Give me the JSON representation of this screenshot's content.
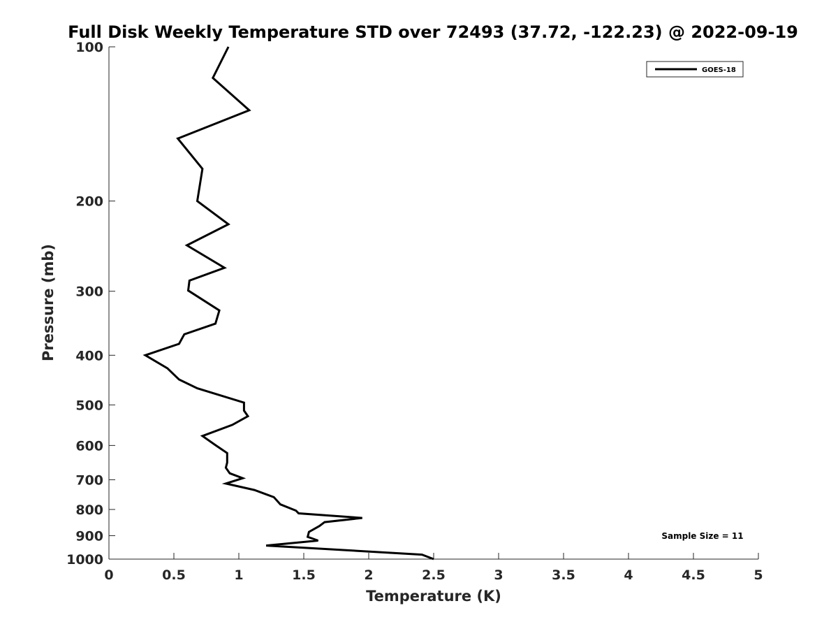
{
  "chart_data": {
    "type": "line",
    "title": "Full Disk Weekly Temperature STD over 72493 (37.72, -122.23) @ 2022-09-19",
    "xlabel": "Temperature (K)",
    "ylabel": "Pressure (mb)",
    "xlim": [
      0,
      5
    ],
    "ylim": [
      100,
      1000
    ],
    "y_scale": "log",
    "y_reversed": true,
    "x_ticks": [
      "0",
      "0.5",
      "1",
      "1.5",
      "2",
      "2.5",
      "3",
      "3.5",
      "4",
      "4.5",
      "5"
    ],
    "y_ticks": [
      "100",
      "200",
      "300",
      "400",
      "500",
      "600",
      "700",
      "800",
      "900",
      "1000"
    ],
    "grid": false,
    "legend_position": "top-right",
    "series": [
      {
        "name": "GOES-18",
        "color": "#000000",
        "x": [
          0.92,
          0.8,
          1.08,
          0.53,
          0.72,
          0.68,
          0.92,
          0.6,
          0.89,
          0.62,
          0.61,
          0.85,
          0.82,
          0.58,
          0.54,
          0.28,
          0.45,
          0.54,
          0.68,
          1.04,
          1.04,
          1.07,
          0.95,
          0.72,
          0.82,
          0.91,
          0.91,
          0.9,
          0.93,
          1.03,
          0.9,
          1.12,
          1.27,
          1.32,
          1.44,
          1.46,
          1.95,
          1.66,
          1.62,
          1.54,
          1.53,
          1.61,
          1.21,
          2.41,
          2.5
        ],
        "y": [
          100,
          115,
          133,
          151,
          173,
          200,
          222,
          244,
          270,
          286,
          299,
          327,
          347,
          364,
          380,
          400,
          424,
          446,
          464,
          495,
          513,
          526,
          547,
          575,
          599,
          621,
          648,
          663,
          680,
          695,
          712,
          733,
          757,
          782,
          804,
          814,
          831,
          847,
          862,
          885,
          905,
          920,
          941,
          980,
          1000
        ]
      }
    ],
    "annotations": [
      "Sample Size = 11"
    ]
  }
}
